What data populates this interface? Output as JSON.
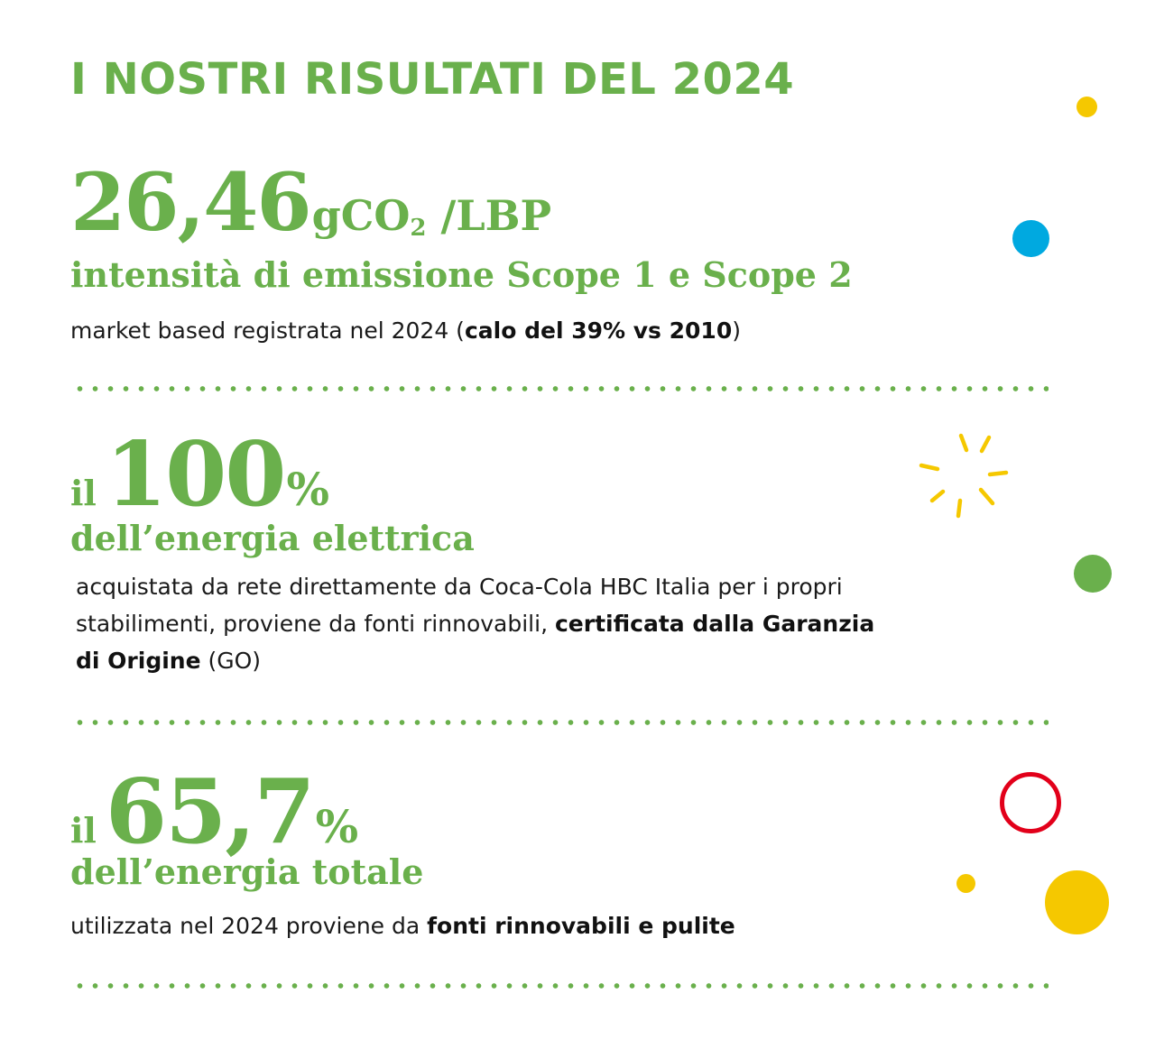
{
  "colors": {
    "green": "#6ab04c",
    "yellow": "#f5c800",
    "blue": "#00a9e0",
    "red": "#e2001a",
    "text": "#1a1a1a"
  },
  "header": {
    "title": "I NOSTRI RISULTATI DEL 2024"
  },
  "stat1": {
    "value": "26,46",
    "unit_main": "gCO",
    "unit_sub": "2",
    "unit_tail": " /LBP",
    "subtitle": "intensità di emissione Scope 1 e Scope 2",
    "desc_pre": "market based registrata nel 2024 (",
    "desc_bold": "calo del 39% vs 2010",
    "desc_post": ")"
  },
  "stat2": {
    "prefix": "il",
    "value": "100",
    "symbol": "%",
    "subtitle": "dell’energia elettrica",
    "desc_line1": "acquistata da rete direttamente da Coca-Cola HBC Italia per i propri",
    "desc_line2_pre": "stabilimenti, proviene da fonti rinnovabili, ",
    "desc_line2_bold": "certificata dalla Garanzia",
    "desc_line3_bold": "di Origine",
    "desc_line3_post": " (GO)"
  },
  "stat3": {
    "prefix": "il",
    "value": "65,7",
    "symbol": "%",
    "subtitle": "dell’energia totale",
    "desc_pre": "utilizzata nel 2024 proviene da ",
    "desc_bold": "fonti rinnovabili e pulite"
  },
  "decorations": {
    "icons": [
      "yellow-dot-icon",
      "blue-dot-icon",
      "sparkle-icon",
      "green-dot-icon",
      "red-ring-icon",
      "small-yellow-dot-icon",
      "large-yellow-dot-icon"
    ]
  }
}
